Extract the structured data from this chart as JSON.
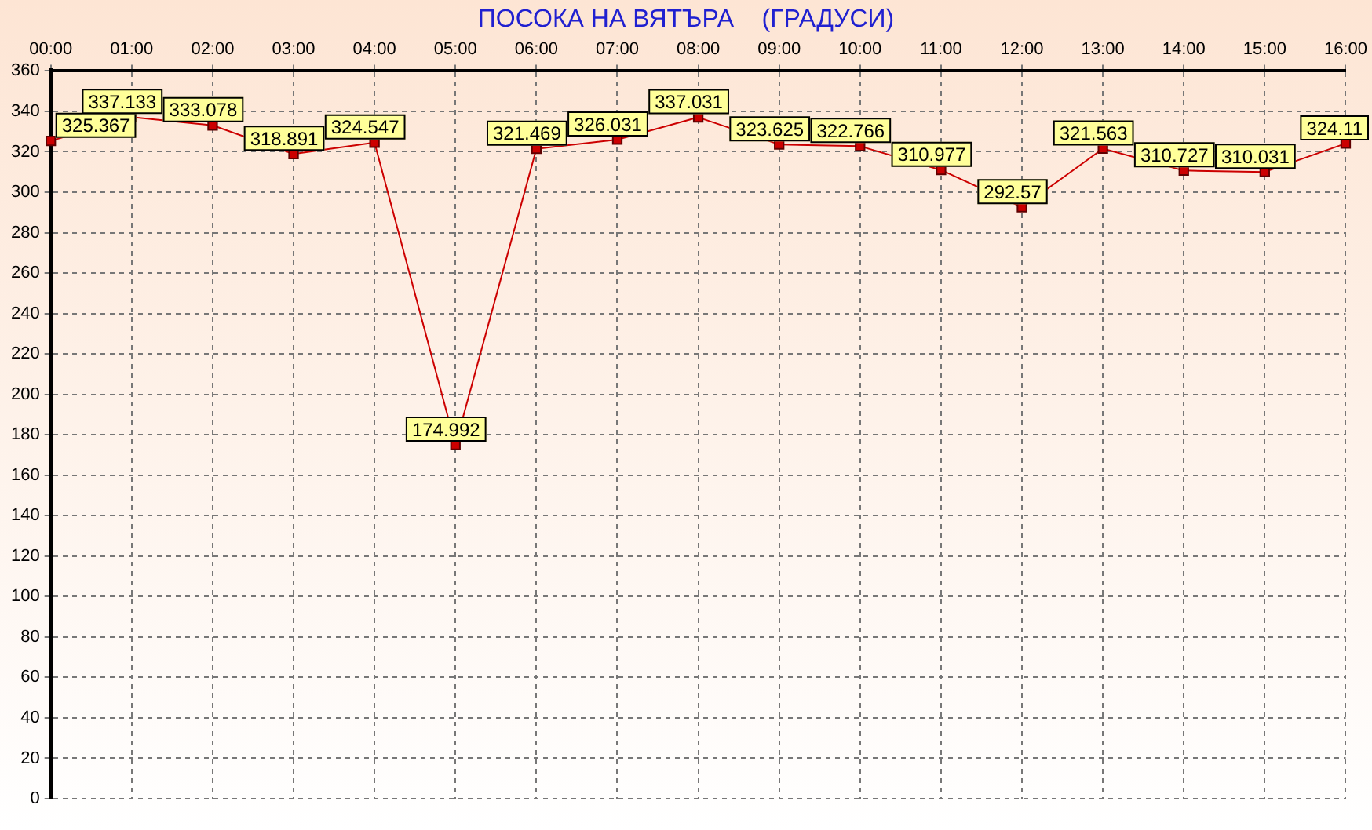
{
  "chart_data": {
    "type": "line",
    "title": "ПОСОКА НА ВЯТЪРА    (ГРАДУСИ)",
    "categories": [
      "00:00",
      "01:00",
      "02:00",
      "03:00",
      "04:00",
      "05:00",
      "06:00",
      "07:00",
      "08:00",
      "09:00",
      "10:00",
      "11:00",
      "12:00",
      "13:00",
      "14:00",
      "15:00",
      "16:00"
    ],
    "series": [
      {
        "color": "#cc0000",
        "values": [
          325.367,
          337.133,
          333.078,
          318.891,
          324.547,
          174.992,
          321.469,
          326.031,
          337.031,
          323.625,
          322.766,
          310.977,
          292.57,
          321.563,
          310.727,
          310.031,
          324.11
        ]
      }
    ],
    "ylim": [
      0,
      360
    ],
    "yticks": [
      0,
      20,
      40,
      60,
      80,
      100,
      120,
      140,
      160,
      180,
      200,
      220,
      240,
      260,
      280,
      300,
      320,
      340,
      360
    ],
    "grid": true,
    "legend": false,
    "marker": "square",
    "line_style": "solid",
    "data_labels": true
  }
}
